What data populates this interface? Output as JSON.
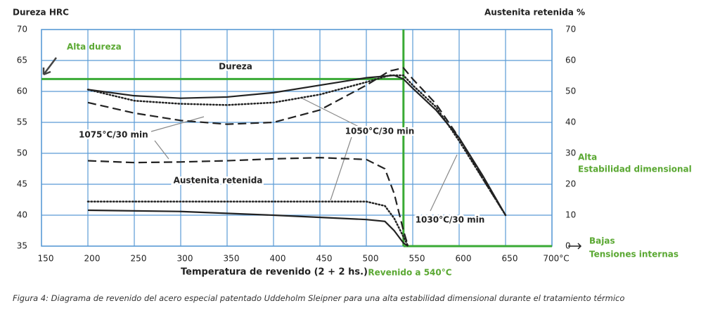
{
  "chart_data": {
    "type": "line",
    "y_title": "Dureza HRC",
    "y2_title": "Austenita retenida %",
    "x_title": "Temperatura de revenido (2 + 2 hs.)",
    "xlim": [
      150,
      700
    ],
    "xticks": [
      150,
      200,
      250,
      300,
      350,
      400,
      450,
      500,
      550,
      600,
      650,
      {
        "value": 700,
        "label": "700°C"
      }
    ],
    "ylim": [
      35,
      70
    ],
    "yticks": [
      35,
      40,
      45,
      50,
      55,
      60,
      65,
      70
    ],
    "y2lim": [
      0,
      70
    ],
    "y2ticks": [
      0,
      10,
      20,
      30,
      40,
      50,
      60,
      70
    ],
    "grid": true,
    "series": [
      {
        "style": "solid",
        "color": "#222222",
        "x": [
          200,
          250,
          300,
          350,
          400,
          450,
          500,
          530,
          540,
          550,
          575,
          600,
          625,
          650
        ],
        "values": [
          60.3,
          59.3,
          58.9,
          59.1,
          59.8,
          61,
          62.2,
          62.6,
          62,
          60.5,
          57,
          52.5,
          46.5,
          40
        ]
      },
      {
        "style": "dotted",
        "color": "#222222",
        "x": [
          200,
          250,
          300,
          350,
          400,
          450,
          500,
          525,
          540,
          550,
          575,
          600,
          625,
          650
        ],
        "values": [
          60.3,
          58.5,
          58,
          57.8,
          58.2,
          59.5,
          61.5,
          62.6,
          62.6,
          61,
          57.5,
          52,
          46,
          40
        ]
      },
      {
        "style": "dashed",
        "color": "#222222",
        "x": [
          200,
          250,
          300,
          350,
          400,
          450,
          500,
          525,
          540,
          550,
          575,
          600,
          625,
          650
        ],
        "values": [
          58.2,
          56.5,
          55.3,
          54.7,
          55,
          57,
          61,
          63.3,
          63.8,
          62,
          58,
          52.5,
          46,
          40
        ]
      },
      {
        "style": "solid",
        "color": "#222222",
        "axis": "y2",
        "x": [
          200,
          300,
          400,
          500,
          520,
          530,
          540,
          545
        ],
        "values": [
          11.6,
          11.2,
          10,
          8.6,
          8,
          5,
          1,
          0
        ]
      },
      {
        "style": "dotted",
        "color": "#222222",
        "axis": "y2",
        "x": [
          200,
          300,
          400,
          500,
          520,
          530,
          540,
          545
        ],
        "values": [
          14.4,
          14.4,
          14.4,
          14.4,
          13,
          9,
          3,
          0
        ]
      },
      {
        "style": "dashed",
        "color": "#222222",
        "axis": "y2",
        "x": [
          200,
          250,
          300,
          350,
          400,
          450,
          500,
          520,
          530,
          540,
          545
        ],
        "values": [
          27.6,
          27,
          27.2,
          27.6,
          28.2,
          28.6,
          28,
          25,
          17,
          5,
          0
        ]
      }
    ],
    "reference_lines": {
      "color": "#3aaa35",
      "y": 62,
      "x": 540,
      "y2": 0
    },
    "annotations": [
      "Alta dureza",
      "Dureza",
      "1075°C/30 min",
      "1050°C/30 min",
      "Austenita retenida",
      "1030°C/30 min",
      "Alta",
      "Estabilidad dimensional",
      "Bajas",
      "Tensiones internas",
      "Revenido a 540°C"
    ],
    "caption": "Figura 4: Diagrama de revenido del acero especial patentado Uddeholm Sleipner para una alta estabilidad dimensional durante el tratamiento térmico"
  }
}
